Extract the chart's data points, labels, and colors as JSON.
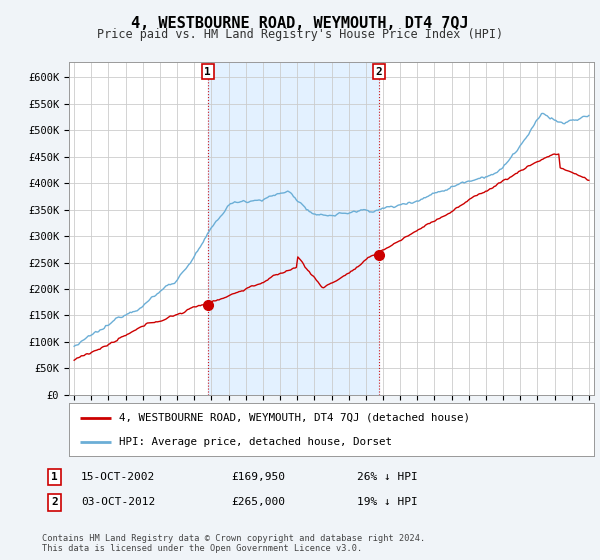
{
  "title": "4, WESTBOURNE ROAD, WEYMOUTH, DT4 7QJ",
  "subtitle": "Price paid vs. HM Land Registry's House Price Index (HPI)",
  "ylabel_ticks": [
    "£0",
    "£50K",
    "£100K",
    "£150K",
    "£200K",
    "£250K",
    "£300K",
    "£350K",
    "£400K",
    "£450K",
    "£500K",
    "£550K",
    "£600K"
  ],
  "ytick_values": [
    0,
    50000,
    100000,
    150000,
    200000,
    250000,
    300000,
    350000,
    400000,
    450000,
    500000,
    550000,
    600000
  ],
  "ylim": [
    0,
    630000
  ],
  "xlim_start": 1994.7,
  "xlim_end": 2025.3,
  "hpi_color": "#6baed6",
  "hpi_fill_color": "#ddeeff",
  "price_color": "#cc0000",
  "marker1_label": "1",
  "marker1_date": "15-OCT-2002",
  "marker1_price": "£169,950",
  "marker1_hpi": "26% ↓ HPI",
  "marker1_x": 2002.79,
  "marker1_y": 169950,
  "marker2_label": "2",
  "marker2_date": "03-OCT-2012",
  "marker2_price": "£265,000",
  "marker2_hpi": "19% ↓ HPI",
  "marker2_x": 2012.75,
  "marker2_y": 265000,
  "legend_line1": "4, WESTBOURNE ROAD, WEYMOUTH, DT4 7QJ (detached house)",
  "legend_line2": "HPI: Average price, detached house, Dorset",
  "footnote": "Contains HM Land Registry data © Crown copyright and database right 2024.\nThis data is licensed under the Open Government Licence v3.0.",
  "background_color": "#f0f4f8",
  "plot_bg_color": "#ffffff",
  "grid_color": "#cccccc"
}
